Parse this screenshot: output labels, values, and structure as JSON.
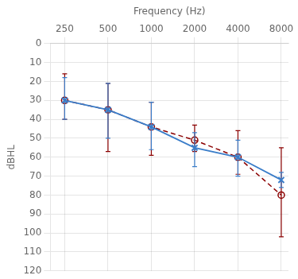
{
  "chart_data": {
    "type": "line",
    "xlabel": "Frequency (Hz)",
    "ylabel": "dBHL",
    "x": [
      250,
      500,
      1000,
      2000,
      4000,
      8000
    ],
    "series": [
      {
        "color": "#8b0000",
        "marker": "circle",
        "line_style": "dashed",
        "values": [
          30,
          35,
          44,
          51,
          60,
          80
        ],
        "yerr_lower": [
          14,
          14,
          13,
          8,
          14,
          25
        ],
        "yerr_upper": [
          10,
          22,
          15,
          6,
          9,
          22
        ]
      },
      {
        "color": "#3a7dc9",
        "marker": "x",
        "line_style": "solid",
        "values": [
          30,
          35,
          44,
          55,
          60,
          72
        ],
        "yerr_lower": [
          12,
          14,
          13,
          8,
          9,
          4
        ],
        "yerr_upper": [
          10,
          15,
          12,
          10,
          10,
          4
        ]
      }
    ],
    "log": "x",
    "xlim": [
      198.582,
      8976.148
    ],
    "xticks": [
      250,
      500,
      1000,
      2000,
      4000,
      8000
    ],
    "ylim": [
      0,
      120
    ],
    "yticks": [
      0,
      10,
      20,
      30,
      40,
      50,
      60,
      70,
      80,
      90,
      100,
      110,
      120
    ],
    "grid": true
  }
}
